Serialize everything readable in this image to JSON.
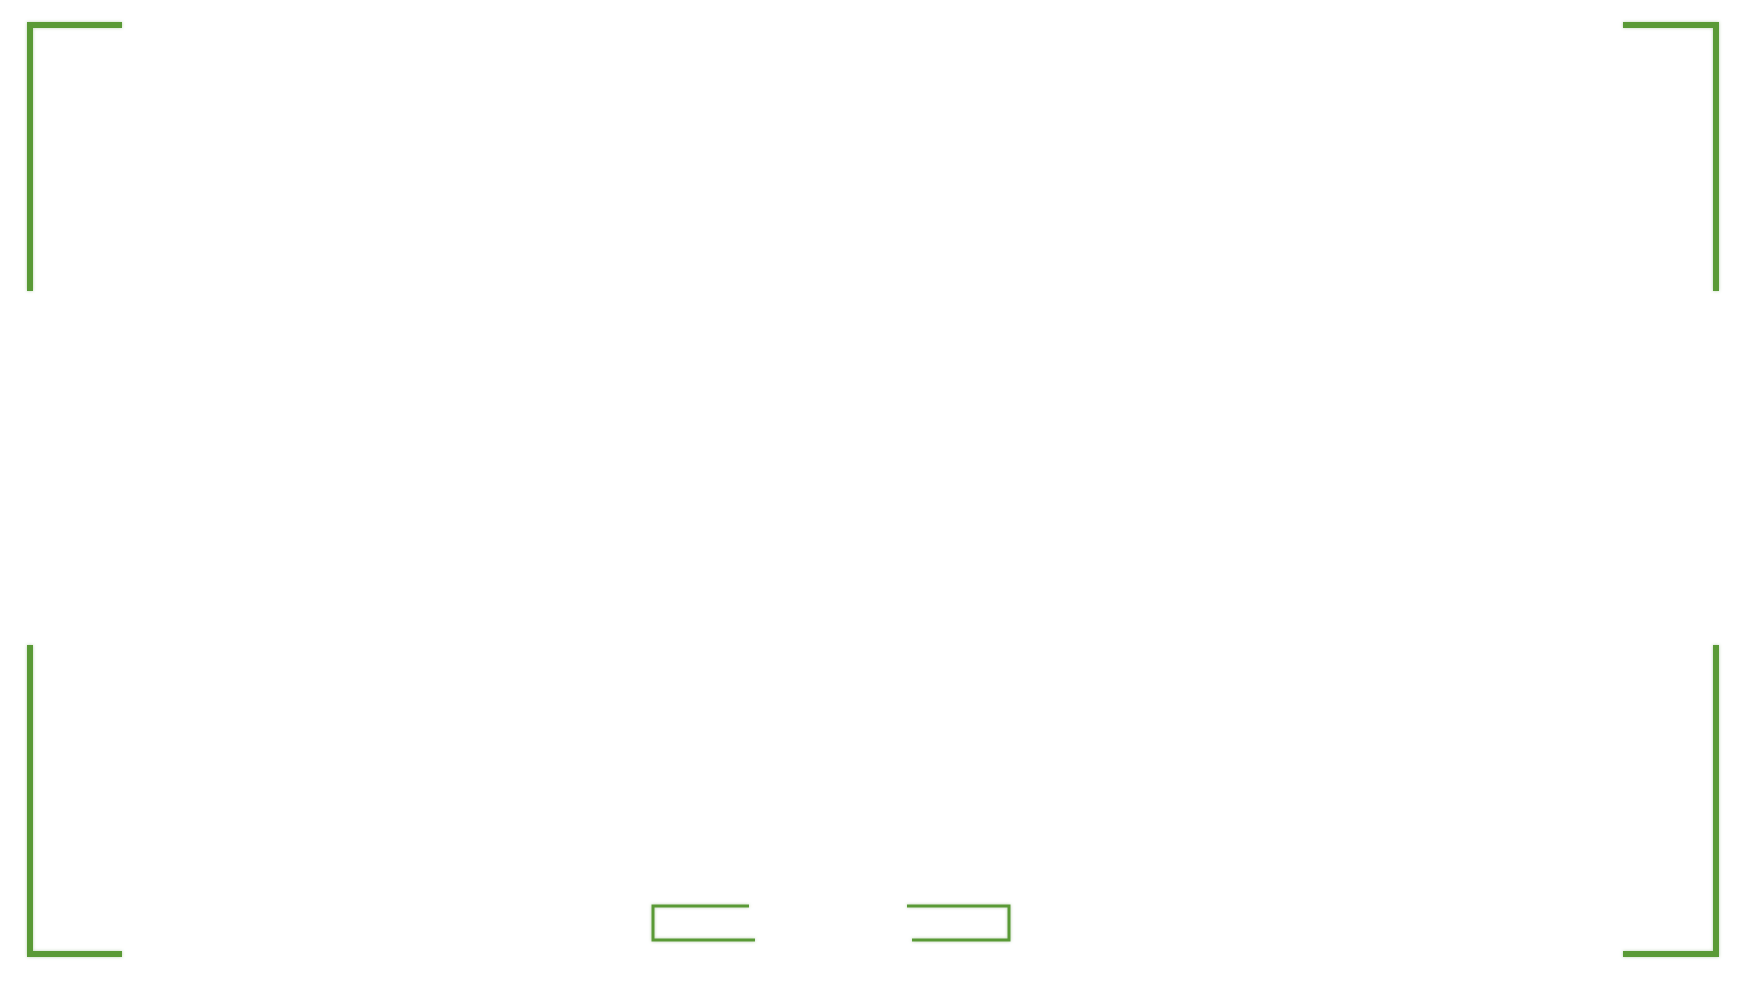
{
  "theme": {
    "accent": "#5a9a36",
    "background": "#ffffff"
  },
  "frame": {
    "corners": [
      "top-left",
      "top-right",
      "bottom-left",
      "bottom-right"
    ],
    "tabs": [
      "left-tab",
      "right-tab"
    ]
  }
}
